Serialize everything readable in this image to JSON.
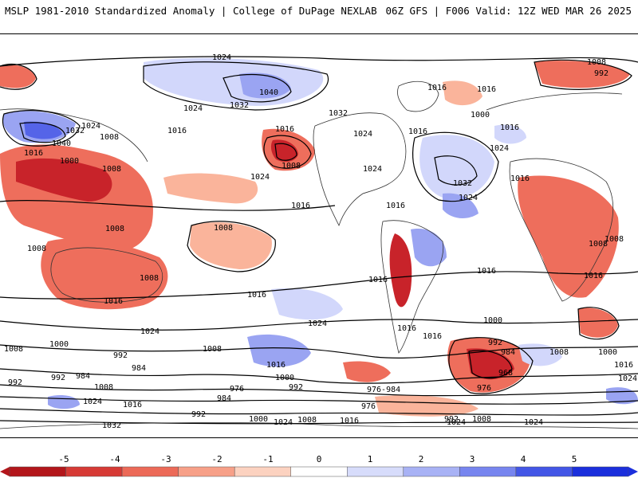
{
  "header": {
    "title": "MSLP 1981-2010 Standardized Anomaly | College of DuPage NEXLAB",
    "run": "06Z GFS | F006 Valid: 12Z WED MAR 26 2025"
  },
  "isobar_labels": [
    "1024",
    "1040",
    "1032",
    "1008",
    "992",
    "1024",
    "1032",
    "1016",
    "1040",
    "1008",
    "1016",
    "1032",
    "1024",
    "1024",
    "1016",
    "1000",
    "1016",
    "1016",
    "1000",
    "1008",
    "1016",
    "1008",
    "1016",
    "1024",
    "1024",
    "1032",
    "1024",
    "1016",
    "1008",
    "1008",
    "1016",
    "1008",
    "1016",
    "1016",
    "1024",
    "1016",
    "1016",
    "1008",
    "1016",
    "1008",
    "1000",
    "992",
    "984",
    "968",
    "976",
    "1008",
    "1024",
    "992",
    "984",
    "1000",
    "1008",
    "1024",
    "1016",
    "976",
    "984",
    "1008",
    "992",
    "1000",
    "992",
    "984",
    "1032",
    "1000",
    "1024",
    "992",
    "1008",
    "1024",
    "1008",
    "1016",
    "1024",
    "1016",
    "1024",
    "1016",
    "1016",
    "992",
    "1008",
    "976",
    "976-984",
    "1008",
    "1016",
    "1000",
    "1016",
    "992",
    "1024"
  ],
  "colorbar": {
    "ticks": [
      "-5",
      "-4",
      "-3",
      "-2",
      "-1",
      "0",
      "1",
      "2",
      "3",
      "4",
      "5"
    ],
    "colors": [
      "#b3161b",
      "#d63a35",
      "#ec6a58",
      "#f7a088",
      "#fcd2c0",
      "#ffffff",
      "#d7dcfb",
      "#a8b2f5",
      "#7785ef",
      "#4356e6",
      "#1b2fdc"
    ]
  },
  "colors": {
    "neg_strong": "#c8232a",
    "neg_mid": "#ee6e5c",
    "neg_light": "#fab49b",
    "pos_light": "#d2d7fb",
    "pos_mid": "#9aa4f2",
    "pos_strong": "#5564e8"
  }
}
